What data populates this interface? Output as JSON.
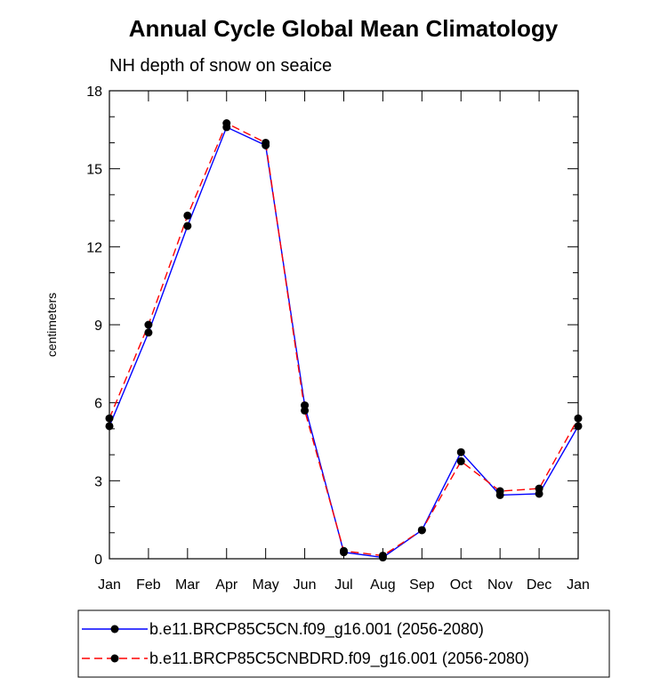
{
  "chart_data": {
    "type": "line",
    "title": "Annual Cycle Global Mean Climatology",
    "subtitle": "NH depth of snow on seaice",
    "xlabel": "",
    "ylabel": "centimeters",
    "categories": [
      "Jan",
      "Feb",
      "Mar",
      "Apr",
      "May",
      "Jun",
      "Jul",
      "Aug",
      "Sep",
      "Oct",
      "Nov",
      "Dec",
      "Jan"
    ],
    "ylim": [
      0,
      18
    ],
    "yticks": [
      0,
      3,
      6,
      9,
      12,
      15,
      18
    ],
    "series": [
      {
        "name": "b.e11.BRCP85C5CN.f09_g16.001 (2056-2080)",
        "color": "#0000ff",
        "dash": "solid",
        "values": [
          5.1,
          8.7,
          12.8,
          16.6,
          15.9,
          5.9,
          0.25,
          0.05,
          1.1,
          4.1,
          2.45,
          2.5,
          5.1
        ]
      },
      {
        "name": "b.e11.BRCP85C5CNBDRD.f09_g16.001 (2056-2080)",
        "color": "#ff0000",
        "dash": "dashed",
        "values": [
          5.4,
          9.0,
          13.2,
          16.75,
          16.0,
          5.7,
          0.3,
          0.12,
          1.1,
          3.75,
          2.6,
          2.7,
          5.4
        ]
      }
    ]
  }
}
